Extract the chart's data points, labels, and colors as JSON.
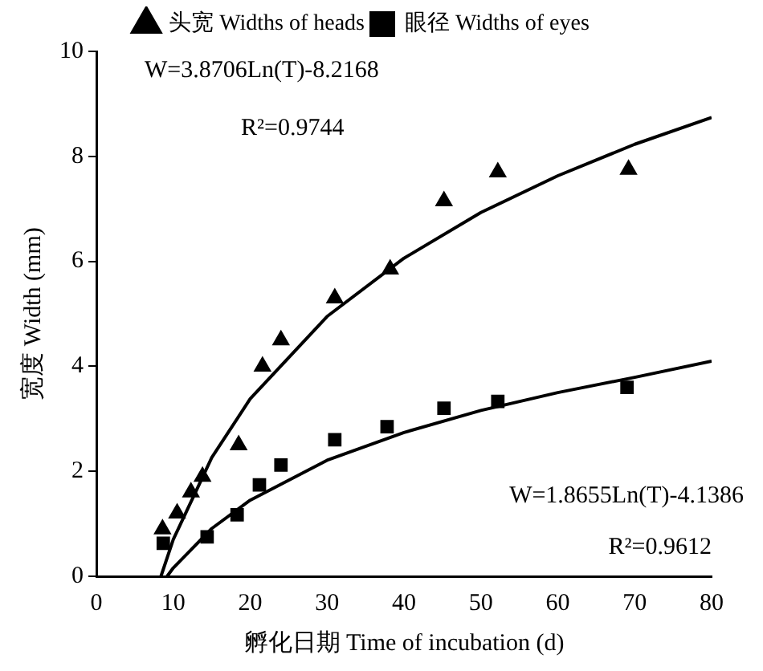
{
  "chart_data": {
    "type": "scatter",
    "xlabel": "孵化日期 Time of incubation (d)",
    "ylabel": "宽度 Width (mm)",
    "xlim": [
      0,
      80
    ],
    "xticks": [
      0,
      10,
      20,
      30,
      40,
      50,
      60,
      70,
      80
    ],
    "ylim": [
      0,
      10
    ],
    "yticks": [
      0,
      2,
      4,
      6,
      8,
      10
    ],
    "grid": false,
    "legend": "top",
    "series": [
      {
        "name": "头宽 Widths of heads",
        "type": "scatter",
        "marker": "triangle",
        "color": "#000000",
        "x": [
          8.6,
          10.5,
          12.3,
          13.8,
          18.5,
          21.6,
          24,
          31,
          38.2,
          45.2,
          52.2,
          69.2
        ],
        "values": [
          0.9,
          1.2,
          1.6,
          1.9,
          2.5,
          4.0,
          4.5,
          5.3,
          5.85,
          7.15,
          7.7,
          7.75
        ]
      },
      {
        "name": "眼径 Widths of eyes",
        "type": "scatter",
        "marker": "square",
        "color": "#000000",
        "x": [
          8.7,
          14.4,
          18.3,
          21.2,
          24,
          31,
          37.8,
          45.2,
          52.2,
          69
        ],
        "values": [
          0.63,
          0.75,
          1.17,
          1.74,
          2.12,
          2.6,
          2.85,
          3.2,
          3.33,
          3.6
        ]
      },
      {
        "type": "line",
        "marker": "none",
        "color": "#000000",
        "x": [
          8.4,
          10,
          15,
          20,
          30,
          40,
          50,
          60,
          70,
          80
        ],
        "values": [
          0,
          0.7,
          2.26,
          3.38,
          4.95,
          6.06,
          6.93,
          7.63,
          8.23,
          8.74
        ]
      },
      {
        "type": "line",
        "marker": "none",
        "color": "#000000",
        "x": [
          9.2,
          10,
          15,
          20,
          30,
          40,
          50,
          60,
          70,
          80
        ],
        "values": [
          0,
          0.16,
          0.91,
          1.45,
          2.21,
          2.74,
          3.16,
          3.5,
          3.79,
          4.1
        ]
      }
    ],
    "annotations": [
      "W=3.8706Ln(T)-8.2168",
      "R²=0.9744",
      "W=1.8655Ln(T)-4.1386",
      "R²=0.9612"
    ]
  }
}
